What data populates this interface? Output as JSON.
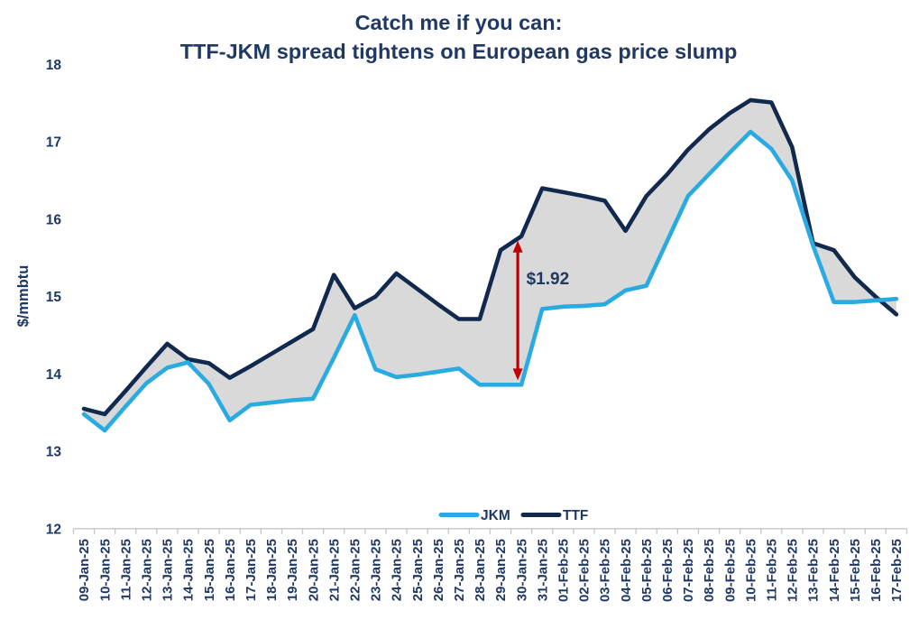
{
  "chart_data": {
    "type": "line",
    "title": "Catch me if you can: TTF-JKM spread tightens on European gas price slump",
    "title_line1": "Catch me if you can:",
    "title_line2": "TTF-JKM spread tightens on European gas price slump",
    "xlabel": "",
    "ylabel": "$/mmbtu",
    "ylim": [
      12,
      18
    ],
    "yticks": [
      12,
      13,
      14,
      15,
      16,
      17,
      18
    ],
    "grid": false,
    "legend_position": "bottom",
    "categories": [
      "09-Jan-25",
      "10-Jan-25",
      "11-Jan-25",
      "12-Jan-25",
      "13-Jan-25",
      "14-Jan-25",
      "15-Jan-25",
      "16-Jan-25",
      "17-Jan-25",
      "18-Jan-25",
      "19-Jan-25",
      "20-Jan-25",
      "21-Jan-25",
      "22-Jan-25",
      "23-Jan-25",
      "24-Jan-25",
      "25-Jan-25",
      "26-Jan-25",
      "27-Jan-25",
      "28-Jan-25",
      "29-Jan-25",
      "30-Jan-25",
      "31-Jan-25",
      "01-Feb-25",
      "02-Feb-25",
      "03-Feb-25",
      "04-Feb-25",
      "05-Feb-25",
      "06-Feb-25",
      "07-Feb-25",
      "08-Feb-25",
      "09-Feb-25",
      "10-Feb-25",
      "11-Feb-25",
      "12-Feb-25",
      "13-Feb-25",
      "14-Feb-25",
      "15-Feb-25",
      "16-Feb-25",
      "17-Feb-25"
    ],
    "series": [
      {
        "name": "TTF",
        "color": "#12294E",
        "values": [
          13.55,
          13.48,
          13.78,
          14.09,
          14.39,
          14.19,
          14.14,
          13.95,
          14.1,
          14.26,
          14.42,
          14.58,
          15.28,
          14.85,
          15.0,
          15.3,
          15.1,
          14.9,
          14.71,
          14.71,
          15.6,
          15.78,
          16.4,
          16.35,
          16.3,
          16.24,
          15.85,
          16.3,
          16.58,
          16.9,
          17.16,
          17.37,
          17.54,
          17.51,
          16.93,
          15.69,
          15.6,
          15.25,
          15.0,
          14.77
        ]
      },
      {
        "name": "JKM",
        "color": "#29ABE2",
        "values": [
          13.48,
          13.27,
          13.58,
          13.88,
          14.08,
          14.15,
          13.87,
          13.4,
          13.6,
          13.63,
          13.66,
          13.68,
          14.21,
          14.76,
          14.06,
          13.96,
          13.99,
          14.03,
          14.07,
          13.86,
          13.86,
          13.86,
          14.84,
          14.87,
          14.88,
          14.9,
          15.08,
          15.14,
          15.72,
          16.3,
          16.58,
          16.86,
          17.13,
          16.91,
          16.5,
          15.66,
          14.93,
          14.93,
          14.95,
          14.97
        ]
      }
    ],
    "legend": [
      "JKM",
      "TTF"
    ],
    "band": {
      "between": [
        "TTF",
        "JKM"
      ],
      "color": "#D9D9D9"
    },
    "annotation": {
      "label": "$1.92",
      "category": "30-Jan-25",
      "from_value": 15.78,
      "to_value": 13.86,
      "color": "#C00000"
    }
  },
  "colors": {
    "text": "#1F3864",
    "ttf_line": "#12294E",
    "jkm_line": "#29ABE2",
    "band_fill": "#D9D9D9",
    "axis_line": "#C6C6C6",
    "annotation_red": "#C00000",
    "background": "#FFFFFF"
  }
}
